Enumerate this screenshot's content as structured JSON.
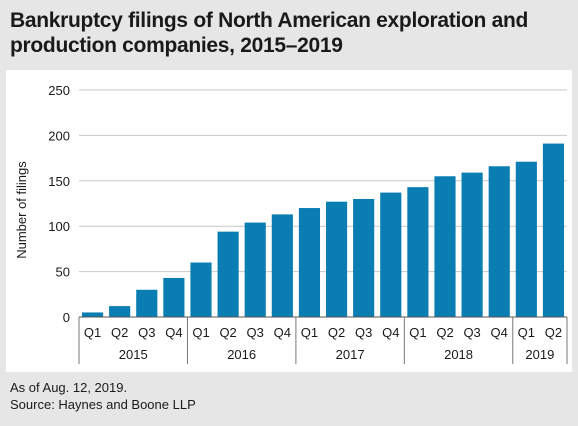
{
  "title": "Bankruptcy filings of North American exploration and production companies, 2015–2019",
  "footnote": "As of Aug. 12, 2019.",
  "source": "Source: Haynes and Boone LLP",
  "chart_data": {
    "type": "bar",
    "ylabel": "Number of filings",
    "ylim": [
      0,
      250
    ],
    "yticks": [
      0,
      50,
      100,
      150,
      200,
      250
    ],
    "grid": true,
    "bar_color": "#0a7db3",
    "categories": [
      "Q1",
      "Q2",
      "Q3",
      "Q4",
      "Q1",
      "Q2",
      "Q3",
      "Q4",
      "Q1",
      "Q2",
      "Q3",
      "Q4",
      "Q1",
      "Q2",
      "Q3",
      "Q4",
      "Q1",
      "Q2"
    ],
    "years": [
      {
        "label": "2015",
        "count": 4
      },
      {
        "label": "2016",
        "count": 4
      },
      {
        "label": "2017",
        "count": 4
      },
      {
        "label": "2018",
        "count": 4
      },
      {
        "label": "2019",
        "count": 2
      }
    ],
    "values": [
      5,
      12,
      30,
      43,
      60,
      94,
      104,
      113,
      120,
      127,
      130,
      137,
      143,
      155,
      159,
      166,
      171,
      191
    ]
  }
}
